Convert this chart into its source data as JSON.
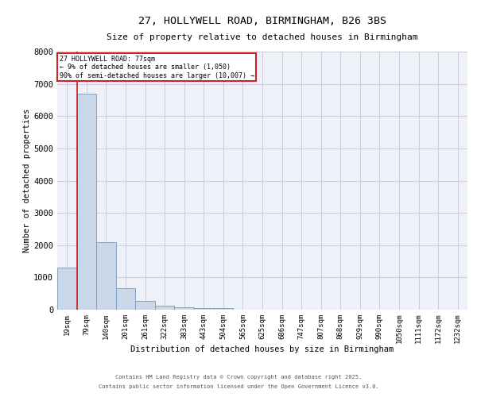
{
  "title_line1": "27, HOLLYWELL ROAD, BIRMINGHAM, B26 3BS",
  "title_line2": "Size of property relative to detached houses in Birmingham",
  "xlabel": "Distribution of detached houses by size in Birmingham",
  "ylabel": "Number of detached properties",
  "bar_labels": [
    "19sqm",
    "79sqm",
    "140sqm",
    "201sqm",
    "261sqm",
    "322sqm",
    "383sqm",
    "443sqm",
    "504sqm",
    "565sqm",
    "625sqm",
    "686sqm",
    "747sqm",
    "807sqm",
    "868sqm",
    "929sqm",
    "990sqm",
    "1050sqm",
    "1111sqm",
    "1172sqm",
    "1232sqm"
  ],
  "bar_values": [
    1310,
    6700,
    2100,
    670,
    280,
    120,
    80,
    50,
    50,
    5,
    5,
    2,
    2,
    1,
    1,
    1,
    1,
    0,
    0,
    0,
    0
  ],
  "bar_color": "#c8d8e8",
  "bar_edgecolor": "#7799bb",
  "vline_color": "#cc2222",
  "ylim": [
    0,
    8000
  ],
  "yticks": [
    0,
    1000,
    2000,
    3000,
    4000,
    5000,
    6000,
    7000,
    8000
  ],
  "annotation_title": "27 HOLLYWELL ROAD: 77sqm",
  "annotation_line1": "← 9% of detached houses are smaller (1,050)",
  "annotation_line2": "90% of semi-detached houses are larger (10,007) →",
  "annotation_color": "#cc2222",
  "grid_color": "#ccccdd",
  "background_color": "#eef2f8",
  "footer_line1": "Contains HM Land Registry data © Crown copyright and database right 2025.",
  "footer_line2": "Contains public sector information licensed under the Open Government Licence v3.0."
}
